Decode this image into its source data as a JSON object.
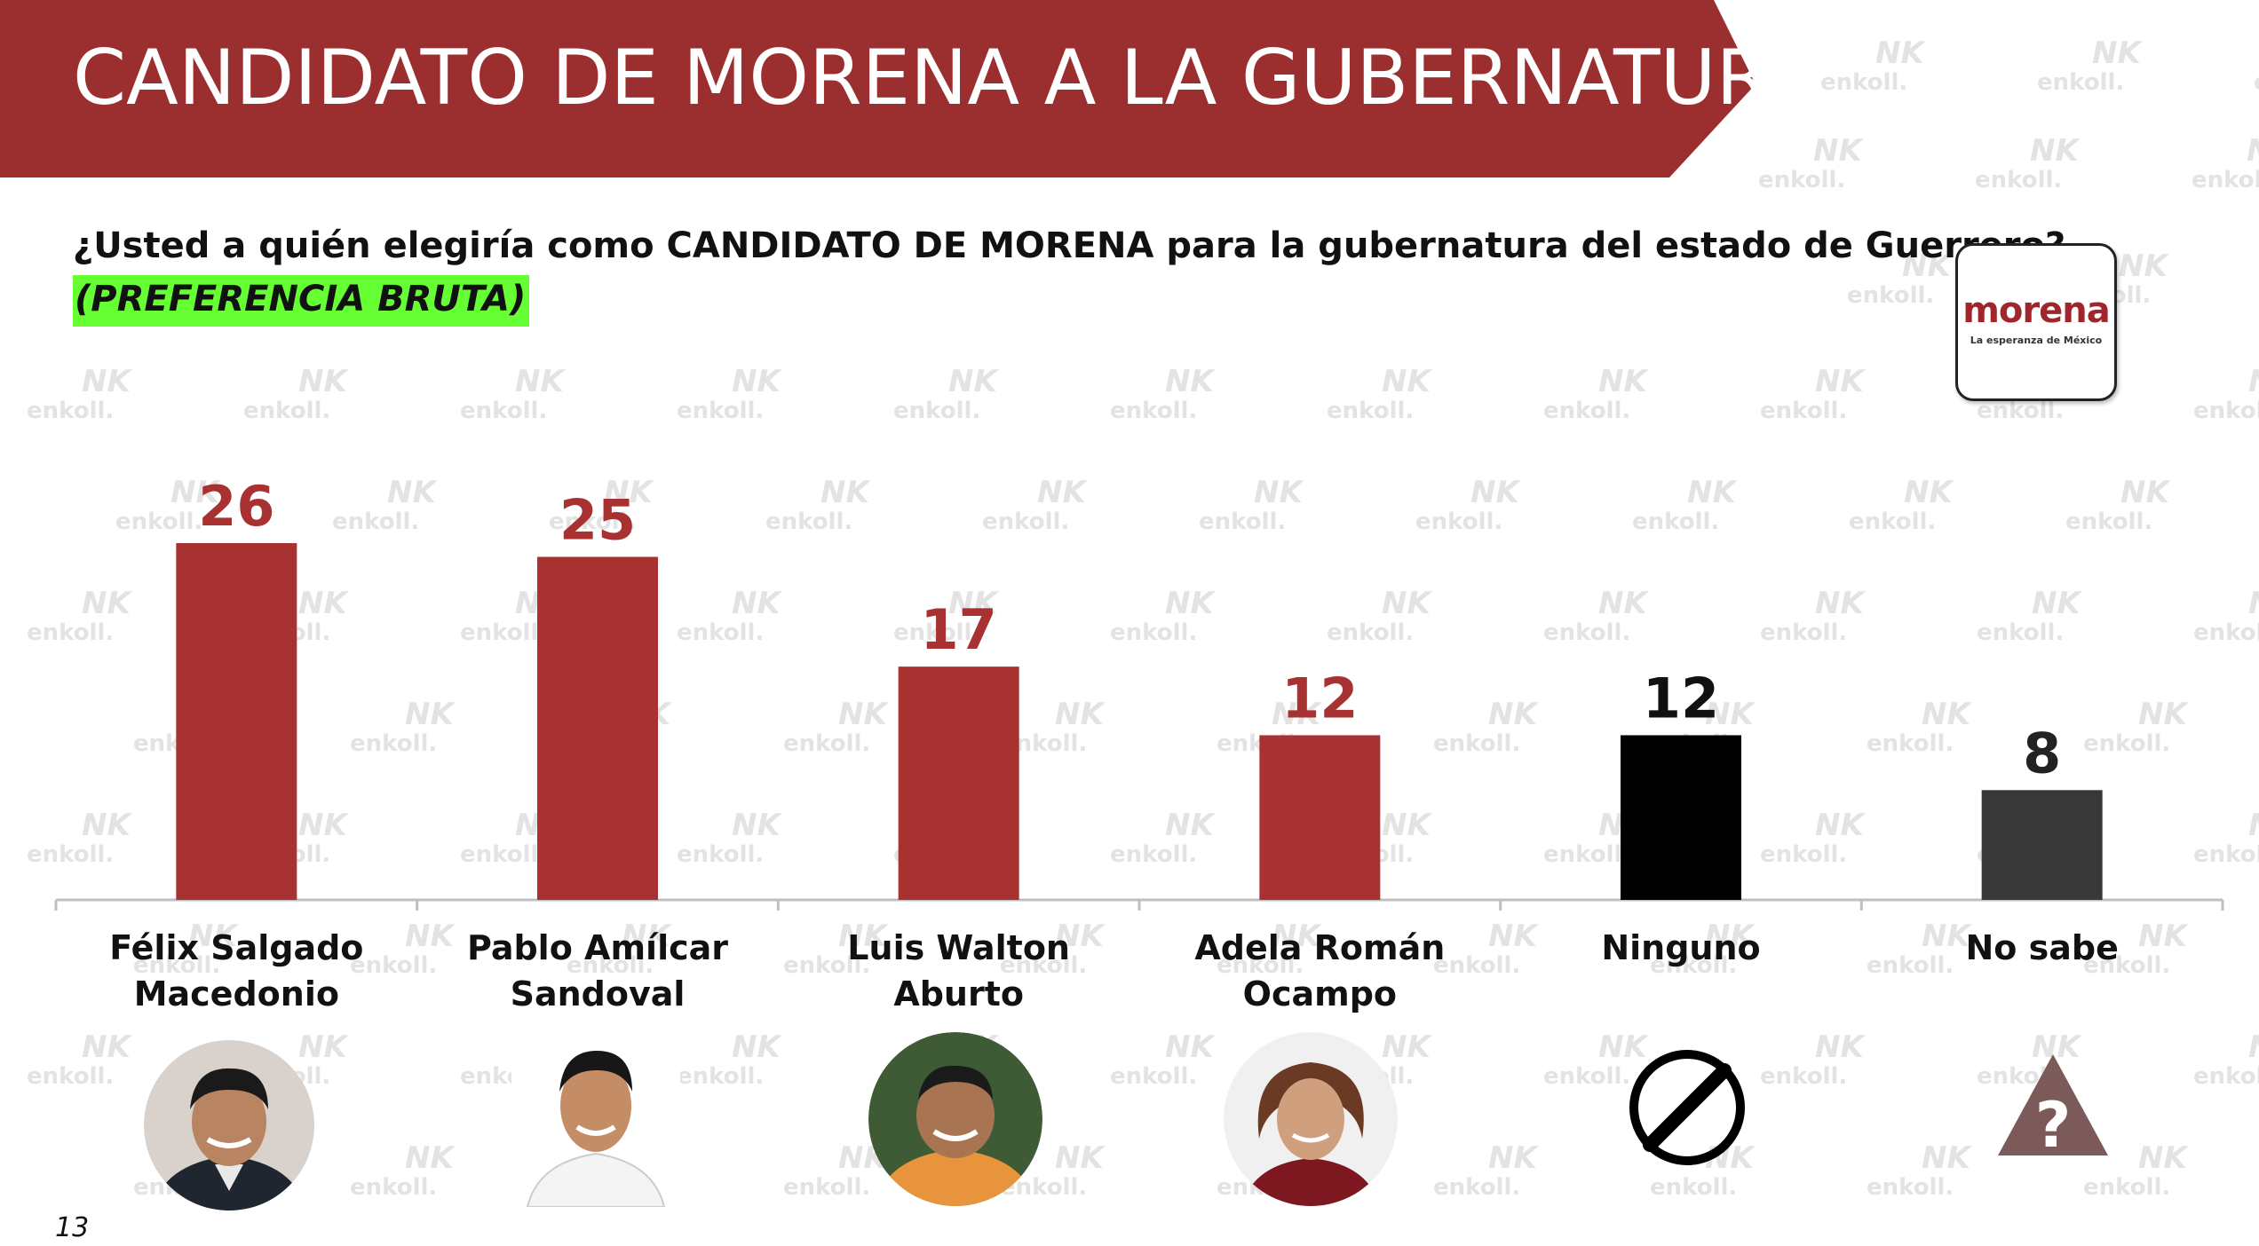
{
  "header": {
    "title": "CANDIDATO DE MORENA A LA GUBERNATURA",
    "banner_color": "#9b2f2f"
  },
  "question": {
    "text": "¿Usted a quién elegiría como CANDIDATO DE MORENA para la gubernatura del estado de Guerrero?",
    "note": "(PREFERENCIA BRUTA)",
    "note_highlight": "#66ff33"
  },
  "logo": {
    "word": "morena",
    "tagline": "La esperanza de México"
  },
  "watermark": "enkoll.",
  "page_number": "13",
  "chart_data": {
    "type": "bar",
    "categories": [
      "Félix Salgado Macedonio",
      "Pablo Amílcar Sandoval",
      "Luis Walton Aburto",
      "Adela Román Ocampo",
      "Ninguno",
      "No sabe"
    ],
    "category_lines": [
      [
        "Félix Salgado",
        "Macedonio"
      ],
      [
        "Pablo Amílcar",
        "Sandoval"
      ],
      [
        "Luis Walton Aburto"
      ],
      [
        "Adela Román Ocampo"
      ],
      [
        "Ninguno"
      ],
      [
        "No sabe"
      ]
    ],
    "values": [
      26,
      25,
      17,
      12,
      12,
      8
    ],
    "value_labels": [
      "26",
      "25",
      "17",
      "12",
      "12",
      "8"
    ],
    "bar_colors": [
      "#a83232",
      "#a83232",
      "#a83232",
      "#a83232",
      "#000000",
      "#383838"
    ],
    "label_colors": [
      "#a83232",
      "#a83232",
      "#a83232",
      "#a83232",
      "#111111",
      "#222222"
    ],
    "ylim": [
      0,
      26
    ],
    "xlabel": "",
    "ylabel": "",
    "grid": false
  },
  "icons": [
    "candidate-photo-felix",
    "candidate-photo-pablo",
    "candidate-photo-luis",
    "candidate-photo-adela",
    "prohibited-icon",
    "question-warning-icon"
  ]
}
